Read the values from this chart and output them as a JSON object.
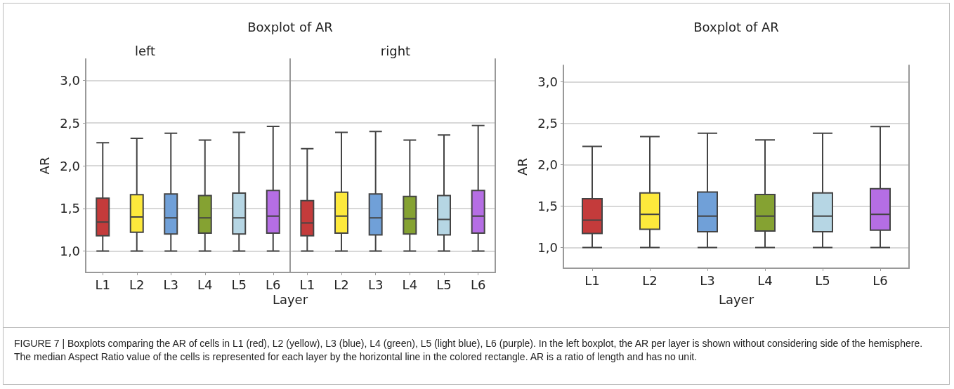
{
  "chart_data": [
    {
      "type": "box",
      "title": "Boxplot of AR",
      "subtitle": "left",
      "xlabel": "Layer",
      "ylabel": "AR",
      "categories": [
        "L1",
        "L2",
        "L3",
        "L4",
        "L5",
        "L6"
      ],
      "colors": [
        "#c43b3b",
        "#fde93c",
        "#70a0d8",
        "#85a232",
        "#b6d6e4",
        "#b56ee4"
      ],
      "ylim": [
        0.75,
        3.25
      ],
      "yticks": [
        {
          "value": 1,
          "label": "1,0"
        },
        {
          "value": 1.5,
          "label": "1,5"
        },
        {
          "value": 2,
          "label": "2,0"
        },
        {
          "value": 2.5,
          "label": "2,5"
        },
        {
          "value": 3,
          "label": "3,0"
        }
      ],
      "grid": "y",
      "boxes": [
        {
          "low": 1.0,
          "q1": 1.18,
          "median": 1.34,
          "q3": 1.62,
          "high": 2.27
        },
        {
          "low": 1.0,
          "q1": 1.22,
          "median": 1.4,
          "q3": 1.66,
          "high": 2.32
        },
        {
          "low": 1.0,
          "q1": 1.2,
          "median": 1.39,
          "q3": 1.67,
          "high": 2.38
        },
        {
          "low": 1.0,
          "q1": 1.21,
          "median": 1.39,
          "q3": 1.65,
          "high": 2.3
        },
        {
          "low": 1.0,
          "q1": 1.2,
          "median": 1.39,
          "q3": 1.68,
          "high": 2.39
        },
        {
          "low": 1.0,
          "q1": 1.21,
          "median": 1.41,
          "q3": 1.71,
          "high": 2.46
        }
      ],
      "annotations": [
        "FIGURE 7 | Boxplots comparing the AR of cells in L1 (red), L2 (yellow), L3 (blue), L4 (green), L5 (light blue), L6 (purple). In the left boxplot, the AR per layer is shown without considering side of the hemisphere. The median Aspect Ratio value of the cells is represented for each layer by the horizontal line in the colored rectangle. AR is a ratio of length and has no unit."
      ]
    },
    {
      "type": "box",
      "subtitle": "right",
      "categories": [
        "L1",
        "L2",
        "L3",
        "L4",
        "L5",
        "L6"
      ],
      "colors": [
        "#c43b3b",
        "#fde93c",
        "#70a0d8",
        "#85a232",
        "#b6d6e4",
        "#b56ee4"
      ],
      "ylim": [
        0.75,
        3.25
      ],
      "grid": "y",
      "tick_labels": "x",
      "yticks": [
        {
          "value": 1,
          "label": null
        },
        {
          "value": 1.5,
          "label": null
        },
        {
          "value": 2,
          "label": null
        },
        {
          "value": 2.5,
          "label": null
        },
        {
          "value": 3,
          "label": null
        }
      ],
      "boxes": [
        {
          "low": 1.0,
          "q1": 1.18,
          "median": 1.33,
          "q3": 1.59,
          "high": 2.2
        },
        {
          "low": 1.0,
          "q1": 1.21,
          "median": 1.41,
          "q3": 1.69,
          "high": 2.39
        },
        {
          "low": 1.0,
          "q1": 1.19,
          "median": 1.39,
          "q3": 1.67,
          "high": 2.4
        },
        {
          "low": 1.0,
          "q1": 1.2,
          "median": 1.38,
          "q3": 1.64,
          "high": 2.3
        },
        {
          "low": 1.0,
          "q1": 1.19,
          "median": 1.37,
          "q3": 1.65,
          "high": 2.36
        },
        {
          "low": 1.0,
          "q1": 1.21,
          "median": 1.41,
          "q3": 1.71,
          "high": 2.47
        }
      ]
    },
    {
      "type": "box",
      "title": "Boxplot of AR",
      "xlabel": "Layer",
      "ylabel": "AR",
      "categories": [
        "L1",
        "L2",
        "L3",
        "L4",
        "L5",
        "L6"
      ],
      "colors": [
        "#c43b3b",
        "#fde93c",
        "#70a0d8",
        "#85a232",
        "#b6d6e4",
        "#b56ee4"
      ],
      "ylim": [
        0.75,
        3.2
      ],
      "yticks": [
        {
          "value": 1,
          "label": "1,0"
        },
        {
          "value": 1.5,
          "label": "1,5"
        },
        {
          "value": 2,
          "label": "2,0"
        },
        {
          "value": 2.5,
          "label": "2,5"
        },
        {
          "value": 3,
          "label": "3,0"
        }
      ],
      "grid": "y",
      "boxes": [
        {
          "low": 1.0,
          "q1": 1.17,
          "median": 1.33,
          "q3": 1.59,
          "high": 2.22
        },
        {
          "low": 1.0,
          "q1": 1.22,
          "median": 1.4,
          "q3": 1.66,
          "high": 2.34
        },
        {
          "low": 1.0,
          "q1": 1.19,
          "median": 1.38,
          "q3": 1.67,
          "high": 2.38
        },
        {
          "low": 1.0,
          "q1": 1.2,
          "median": 1.38,
          "q3": 1.64,
          "high": 2.3
        },
        {
          "low": 1.0,
          "q1": 1.19,
          "median": 1.38,
          "q3": 1.66,
          "high": 2.38
        },
        {
          "low": 1.0,
          "q1": 1.21,
          "median": 1.4,
          "q3": 1.71,
          "high": 2.46
        }
      ]
    }
  ]
}
